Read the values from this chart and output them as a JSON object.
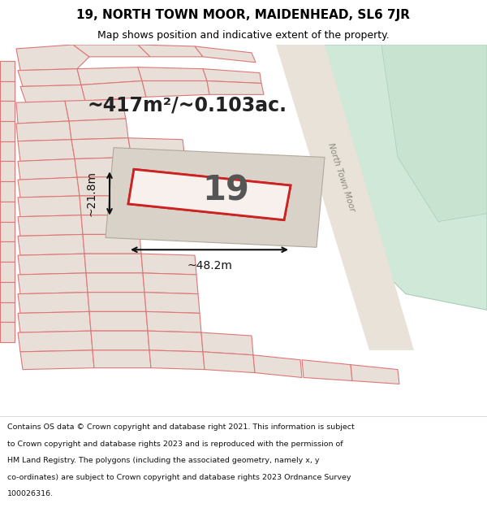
{
  "title_line1": "19, NORTH TOWN MOOR, MAIDENHEAD, SL6 7JR",
  "title_line2": "Map shows position and indicative extent of the property.",
  "footer_lines": [
    "Contains OS data © Crown copyright and database right 2021. This information is subject",
    "to Crown copyright and database rights 2023 and is reproduced with the permission of",
    "HM Land Registry. The polygons (including the associated geometry, namely x, y",
    "co-ordinates) are subject to Crown copyright and database rights 2023 Ordnance Survey",
    "100026316."
  ],
  "map_bg": "#f0ece4",
  "plot_border": "#cc2222",
  "plot_label": "19",
  "area_text": "~417m²/~0.103ac.",
  "width_text": "~48.2m",
  "height_text": "~21.8m",
  "footer_bg": "#ffffff",
  "title_bg": "#ffffff",
  "green_color": "#d0e8d8",
  "property_fill": "#e8e0d8",
  "property_edge": "#dd7777",
  "road_label": "North Town Moor",
  "road_label_rotation": -72
}
